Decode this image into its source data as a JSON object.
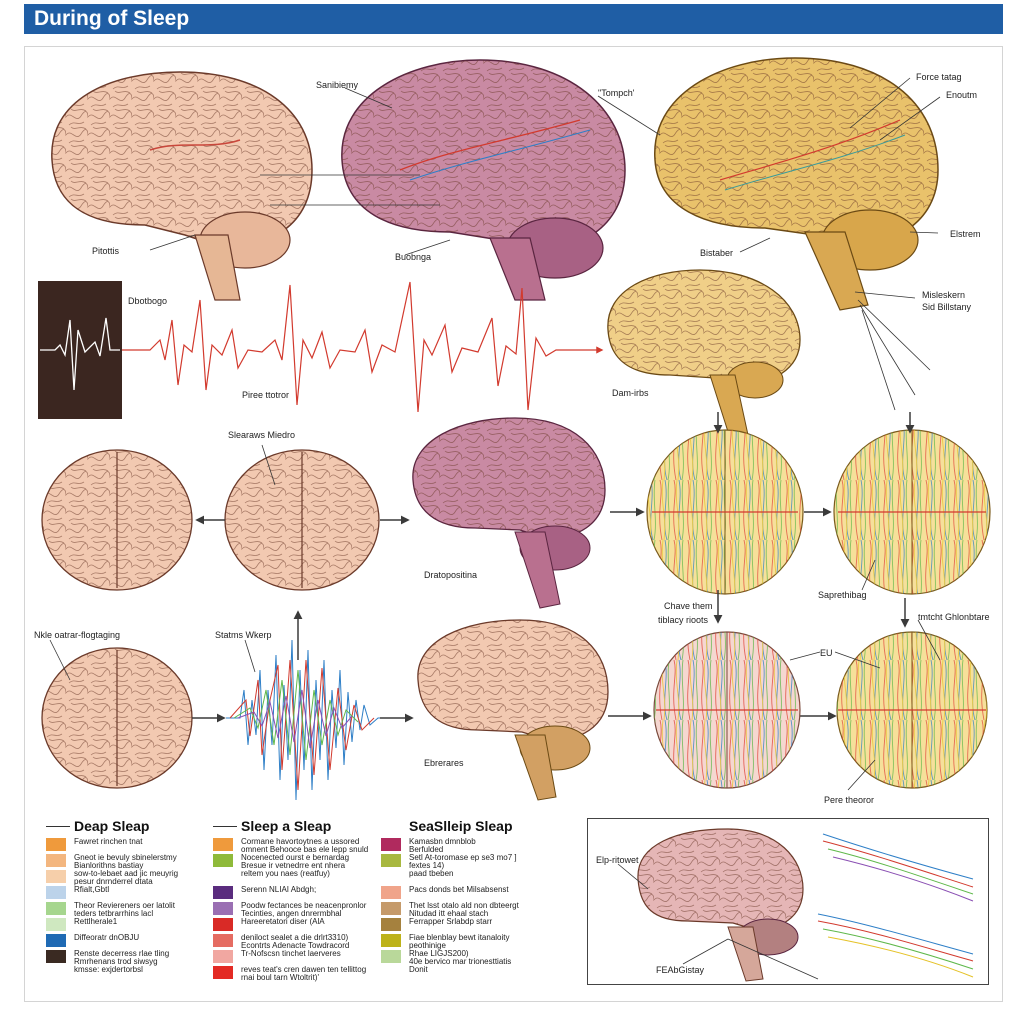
{
  "header": {
    "title": "During of Sleep"
  },
  "colors": {
    "header_bg": "#1f5ea5",
    "wave": "#d23a2e",
    "arrow": "#3a3a3a"
  },
  "labels": {
    "brain1_bottom": "Pitottis",
    "brain2_top": "Sanibiemy",
    "brain2_right": "\"Tompch'",
    "brain2_bottom": "Buobnga",
    "brain3_top1": "Force tatag",
    "brain3_top2": "Enoutm",
    "brain3_right": "Elstrem",
    "brain3_left": "Bistaber",
    "brain3_bottom1": "Misleskern",
    "brain3_bottom2": "Sid Billstany",
    "eeg_box": "Dbotbogo",
    "wave_label": "Piree ttotror",
    "brain4": "Dam-irbs",
    "topview2": "Slearaws Miedro",
    "brain5": "Dratopositina",
    "sphere_right": "Saprethibag",
    "chave1": "Chave them",
    "chave2": "tiblacy rioots",
    "nkle": "Nkle oatrar-flogtaging",
    "status": "Statms Wkerp",
    "ebrares": "Ebrerares",
    "eu": "EU",
    "tmtcht": "tmtcht Ghlonbtare",
    "pere": "Pere theoror",
    "inset_left": "Elp-ritowet",
    "inset_bottom": "FEAbGistay"
  },
  "legend": [
    {
      "heading": "Deap Sleap",
      "items": [
        {
          "color": "#ef9a3c",
          "text": "Fawret rinchen tnat"
        },
        {
          "color": "#f3b67f",
          "text": "Gneot ie bevuly sbinelerstmy|Bianlorithns bastiay"
        },
        {
          "color": "#f6cfaa",
          "text": "sow-to-lebaet aad jic meuyrig|pesur dnrnderrel dtata"
        },
        {
          "color": "#bcd3ea",
          "text": "Rfialt,Gbtl"
        },
        {
          "color": "#a6d68e",
          "text": "Theor Reviereners oer latolit|teders tetbrarrhins lacl"
        },
        {
          "color": "#cfe8c0",
          "text": "Rettlherale1"
        },
        {
          "color": "#1f6ab4",
          "text": "Diffeoratr dnOBJU"
        },
        {
          "color": "#3a2a22",
          "text": "Renste decerress rlae tling|Rmrhenans trod siwsyg|kmsse: exjdertorbsl"
        }
      ]
    },
    {
      "heading": "Sleep a Sleap",
      "items": [
        {
          "color": "#ef9a3c",
          "text": "Cormane havortoytnes a ussored|omnent Behooce bas ele lepp snuld"
        },
        {
          "color": "#8fba3a",
          "text": "Nocenected ourst e bernardag|Bresue ir vetnedrre ent nhera"
        },
        {
          "color": "#ffffff",
          "text": "reltem you naes (reatfuy)"
        },
        {
          "color": "#5a2c7e",
          "text": "Serenn NLIAI Abdgh;"
        },
        {
          "color": "#9a6fb3",
          "text": "Poodw fectances be neacenpronlor|Tecinties, angen dnrermbhal"
        },
        {
          "color": "#d92a26",
          "text": "Hareeretatori diser (AlA"
        },
        {
          "color": "#e56c62",
          "text": "deniloct sealet a die drlrt3310)|Econtrts Adenacte Towdracord"
        },
        {
          "color": "#f1a7a1",
          "text": "Tr-Nofscsn tinchet laerveres"
        },
        {
          "color": "#e32a24",
          "text": "reves teat's cren dawen ten tellittog|rnai boul tarn Wtoltrit)'"
        }
      ]
    },
    {
      "heading": "SeaSlleip Sleap",
      "items": [
        {
          "color": "#b02a5e",
          "text": "Kamasbn dmnblob|Berfulded"
        },
        {
          "color": "#a8b840",
          "text": "Setl At-toromase ep se3 mo7 ]|fextes 14)"
        },
        {
          "color": "#ffffff",
          "text": "paad tbeben"
        },
        {
          "color": "#f0a48a",
          "text": "Pacs donds bet Milsabsenst"
        },
        {
          "color": "#c59a6a",
          "text": "Thet lsst otalo ald non dbteergt|Nitudad itt ehaal stach"
        },
        {
          "color": "#a5813e",
          "text": "Ferrapper Srlabdp starr"
        },
        {
          "color": "#bdb21a",
          "text": "Fiae blenblay bewt itanaloity|peothinige"
        },
        {
          "color": "#b9d89a",
          "text": "Rhae LIGJS200)|40e bervico mar trionesttiatis|Donit"
        }
      ]
    }
  ]
}
